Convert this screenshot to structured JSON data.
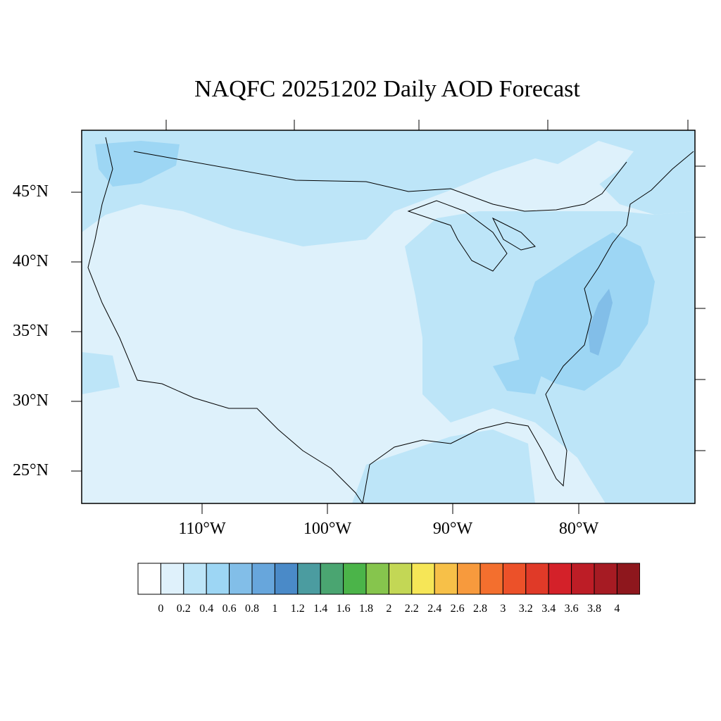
{
  "title": "NAQFC 20251202 Daily AOD Forecast",
  "map": {
    "lat_labels": [
      "45°N",
      "40°N",
      "35°N",
      "30°N",
      "25°N"
    ],
    "lon_labels": [
      "110°W",
      "100°W",
      "90°W",
      "80°W"
    ],
    "background_color": "#def1fb",
    "region": "Contiguous United States"
  },
  "colorbar": {
    "labels": [
      "0",
      "0.2",
      "0.4",
      "0.6",
      "0.8",
      "1",
      "1.2",
      "1.4",
      "1.6",
      "1.8",
      "2",
      "2.2",
      "2.4",
      "2.6",
      "2.8",
      "3",
      "3.2",
      "3.4",
      "3.6",
      "3.8",
      "4"
    ],
    "colors": [
      "#ffffff",
      "#dff1fb",
      "#bde5f8",
      "#9dd6f4",
      "#82bee8",
      "#67a6dc",
      "#4a8ac8",
      "#4b9ca0",
      "#4aa571",
      "#4bb449",
      "#86c54d",
      "#c3d755",
      "#f6e657",
      "#f7c048",
      "#f79a3d",
      "#f36f2e",
      "#ec5129",
      "#e03a28",
      "#d42129",
      "#bd1d26",
      "#a61b23",
      "#8e171d"
    ]
  }
}
